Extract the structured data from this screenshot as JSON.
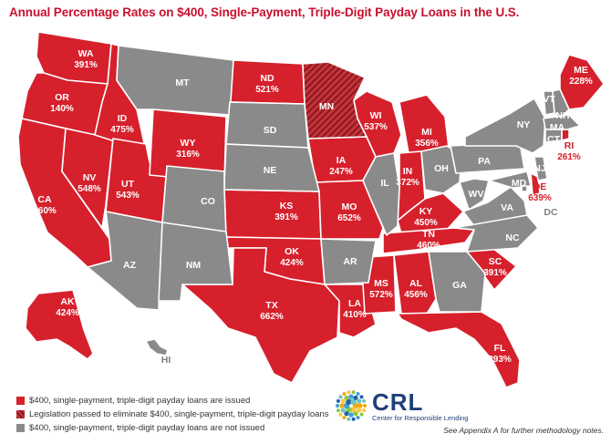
{
  "title": "Annual Percentage Rates on $400, Single-Payment, Triple-Digit Payday Loans in the U.S.",
  "colors": {
    "issued": "#d6202c",
    "legislation": "#8a1a1f",
    "not_issued": "#8a8a8a"
  },
  "states": [
    {
      "abbr": "WA",
      "rate": "391%",
      "status": "issued"
    },
    {
      "abbr": "OR",
      "rate": "140%",
      "status": "issued"
    },
    {
      "abbr": "CA",
      "rate": "460%",
      "status": "issued"
    },
    {
      "abbr": "NV",
      "rate": "548%",
      "status": "issued"
    },
    {
      "abbr": "ID",
      "rate": "475%",
      "status": "issued"
    },
    {
      "abbr": "UT",
      "rate": "543%",
      "status": "issued"
    },
    {
      "abbr": "WY",
      "rate": "316%",
      "status": "issued"
    },
    {
      "abbr": "ND",
      "rate": "521%",
      "status": "issued"
    },
    {
      "abbr": "KS",
      "rate": "391%",
      "status": "issued"
    },
    {
      "abbr": "OK",
      "rate": "424%",
      "status": "issued"
    },
    {
      "abbr": "TX",
      "rate": "662%",
      "status": "issued"
    },
    {
      "abbr": "IA",
      "rate": "247%",
      "status": "issued"
    },
    {
      "abbr": "MO",
      "rate": "652%",
      "status": "issued"
    },
    {
      "abbr": "LA",
      "rate": "410%",
      "status": "issued"
    },
    {
      "abbr": "WI",
      "rate": "537%",
      "status": "issued"
    },
    {
      "abbr": "MI",
      "rate": "356%",
      "status": "issued"
    },
    {
      "abbr": "IN",
      "rate": "372%",
      "status": "issued"
    },
    {
      "abbr": "KY",
      "rate": "450%",
      "status": "issued"
    },
    {
      "abbr": "TN",
      "rate": "460%",
      "status": "issued"
    },
    {
      "abbr": "MS",
      "rate": "572%",
      "status": "issued"
    },
    {
      "abbr": "AL",
      "rate": "456%",
      "status": "issued"
    },
    {
      "abbr": "SC",
      "rate": "391%",
      "status": "issued"
    },
    {
      "abbr": "FL",
      "rate": "293%",
      "status": "issued"
    },
    {
      "abbr": "ME",
      "rate": "228%",
      "status": "issued"
    },
    {
      "abbr": "RI",
      "rate": "261%",
      "status": "issued"
    },
    {
      "abbr": "DE",
      "rate": "639%",
      "status": "issued"
    },
    {
      "abbr": "AK",
      "rate": "424%",
      "status": "issued"
    },
    {
      "abbr": "MN",
      "rate": "",
      "status": "legislation"
    },
    {
      "abbr": "MT",
      "rate": "",
      "status": "not_issued"
    },
    {
      "abbr": "SD",
      "rate": "",
      "status": "not_issued"
    },
    {
      "abbr": "NE",
      "rate": "",
      "status": "not_issued"
    },
    {
      "abbr": "CO",
      "rate": "",
      "status": "not_issued"
    },
    {
      "abbr": "AZ",
      "rate": "",
      "status": "not_issued"
    },
    {
      "abbr": "NM",
      "rate": "",
      "status": "not_issued"
    },
    {
      "abbr": "AR",
      "rate": "",
      "status": "not_issued"
    },
    {
      "abbr": "IL",
      "rate": "",
      "status": "not_issued"
    },
    {
      "abbr": "OH",
      "rate": "",
      "status": "not_issued"
    },
    {
      "abbr": "WV",
      "rate": "",
      "status": "not_issued"
    },
    {
      "abbr": "VA",
      "rate": "",
      "status": "not_issued"
    },
    {
      "abbr": "NC",
      "rate": "",
      "status": "not_issued"
    },
    {
      "abbr": "GA",
      "rate": "",
      "status": "not_issued"
    },
    {
      "abbr": "PA",
      "rate": "",
      "status": "not_issued"
    },
    {
      "abbr": "NY",
      "rate": "",
      "status": "not_issued"
    },
    {
      "abbr": "VT",
      "rate": "",
      "status": "not_issued"
    },
    {
      "abbr": "NH",
      "rate": "",
      "status": "not_issued"
    },
    {
      "abbr": "MA",
      "rate": "",
      "status": "not_issued"
    },
    {
      "abbr": "CT",
      "rate": "",
      "status": "not_issued"
    },
    {
      "abbr": "NJ",
      "rate": "",
      "status": "not_issued"
    },
    {
      "abbr": "MD",
      "rate": "",
      "status": "not_issued"
    },
    {
      "abbr": "DC",
      "rate": "",
      "status": "not_issued"
    },
    {
      "abbr": "HI",
      "rate": "",
      "status": "not_issued"
    }
  ],
  "legend": [
    {
      "label": "$400, single-payment, triple-digit payday loans are issued",
      "status": "issued"
    },
    {
      "label": "Legislation passed to eliminate $400, single-payment, triple-digit payday loans",
      "status": "legislation"
    },
    {
      "label": "$400, single-payment, triple-digit payday loans are not issued",
      "status": "not_issued"
    }
  ],
  "logo": {
    "name": "CRL",
    "subtitle": "Center for Responsible Lending"
  },
  "footnote": "See Appendix A for further methodology notes."
}
